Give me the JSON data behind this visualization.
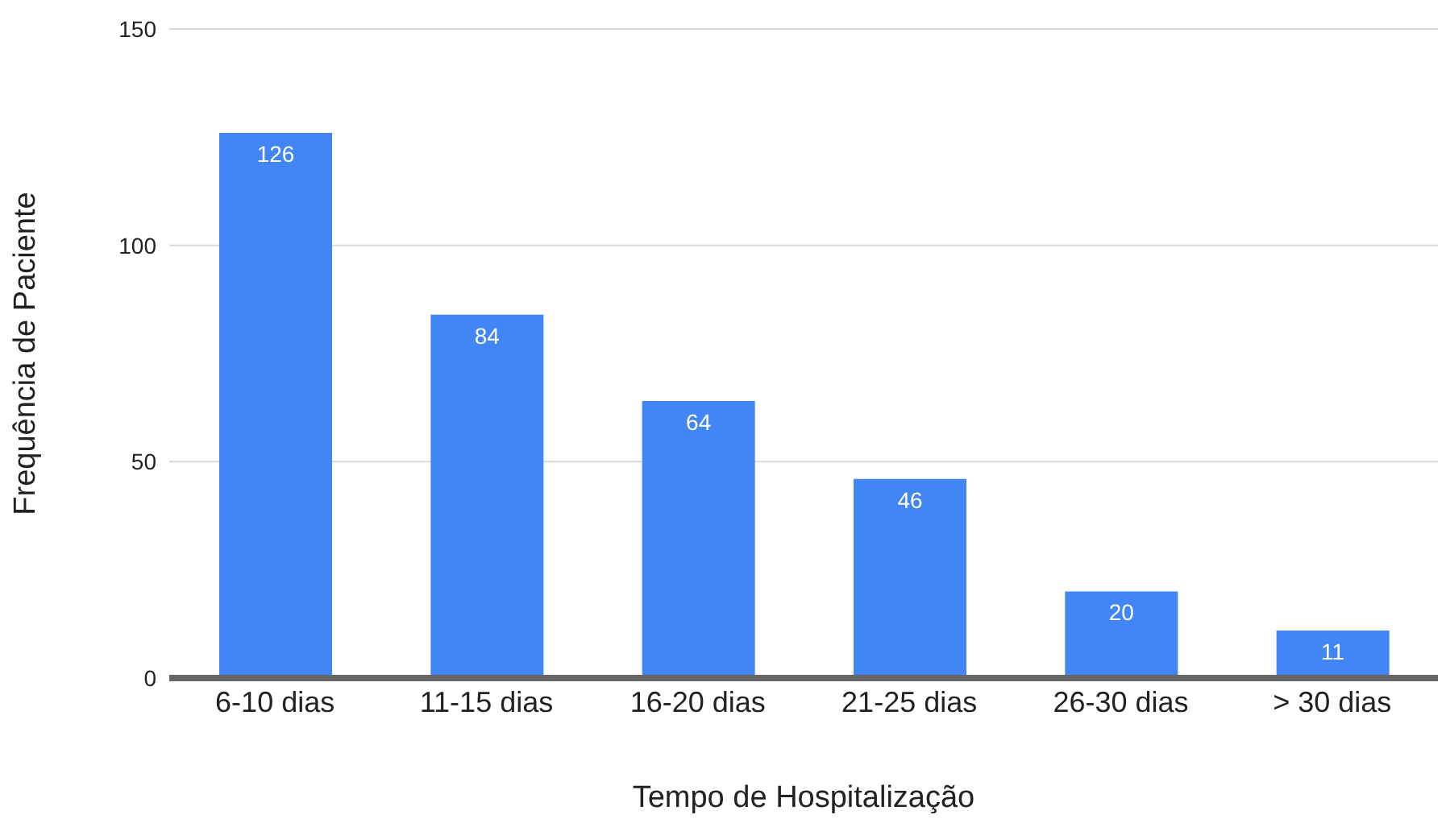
{
  "chart_data": {
    "type": "bar",
    "xlabel": "Tempo de Hospitalização",
    "ylabel": "Frequência de Paciente",
    "categories": [
      "6-10 dias",
      "11-15 dias",
      "16-20 dias",
      "21-25 dias",
      "26-30 dias",
      "> 30 dias"
    ],
    "values": [
      126,
      84,
      64,
      46,
      20,
      11
    ],
    "color": "#4285f4",
    "ylim": [
      0,
      150
    ],
    "yticks": [
      0,
      50,
      100,
      150
    ],
    "grid": "y",
    "data_labels": true
  }
}
